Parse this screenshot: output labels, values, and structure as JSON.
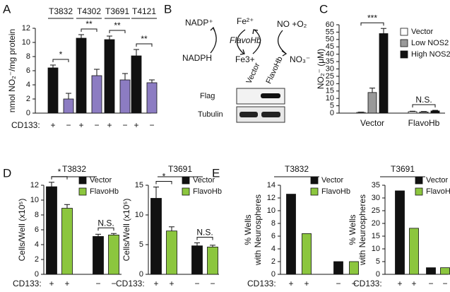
{
  "panel_labels": [
    "A",
    "B",
    "C",
    "D",
    "E"
  ],
  "diagram": {
    "nadp": "NADP⁺",
    "fe2": "Fe²⁺",
    "no_o2": "NO +O₂",
    "enzyme": "FlavoHb",
    "nadph": "NADPH",
    "fe3": "Fe3+",
    "no3": "NO₃⁻"
  },
  "blot": {
    "columns": [
      "Vector",
      "FlavoHb"
    ],
    "rows": [
      "Flag",
      "Tubulin"
    ]
  },
  "chart_data": [
    {
      "type": "bar",
      "y_label": [
        "nmol NO₂⁻/mg protein"
      ],
      "x_label": "CD133:",
      "categories": [
        "T3832",
        "T4302",
        "T3691",
        "T4121"
      ],
      "series": [
        {
          "name": "+",
          "color": "#111111",
          "values": [
            6.4,
            10.6,
            10.4,
            8.1
          ],
          "errors": [
            0.4,
            0.5,
            0.5,
            0.9
          ]
        },
        {
          "name": "−",
          "color": "#8c7cc2",
          "values": [
            2.0,
            5.3,
            4.7,
            4.3
          ],
          "errors": [
            0.8,
            0.9,
            0.9,
            0.4
          ]
        }
      ],
      "annotations": [
        "*",
        "**",
        "**",
        "**"
      ],
      "ylim": [
        0,
        12
      ],
      "yticks": [
        0,
        2,
        4,
        6,
        8,
        10,
        12
      ]
    },
    {
      "type": "bar",
      "y_label": [
        "NO₂⁻ (μM)"
      ],
      "categories": [
        "Vector",
        "FlavoHb"
      ],
      "series": [
        {
          "name": "Vector",
          "color": "#ffffff",
          "values": [
            0.5,
            1.0
          ],
          "errors": [
            0.2,
            0.3
          ]
        },
        {
          "name": "Low NOS2",
          "color": "#999999",
          "values": [
            14,
            0.8
          ],
          "errors": [
            3,
            0.3
          ]
        },
        {
          "name": "High NOS2",
          "color": "#111111",
          "values": [
            54,
            1.5
          ],
          "errors": [
            3.5,
            0.4
          ]
        }
      ],
      "annotations": [
        "***",
        "N.S."
      ],
      "ylim": [
        0,
        60
      ],
      "yticks": [
        0,
        5,
        10,
        15,
        20,
        25,
        30,
        35,
        40,
        45,
        50,
        55,
        60
      ]
    },
    {
      "type": "bar",
      "title": "T3832",
      "y_label": [
        "Cells/Well (x10⁵)"
      ],
      "x_label": "CD133:",
      "categories": [
        "+",
        "−"
      ],
      "series": [
        {
          "name": "Vector",
          "color": "#111111",
          "values": [
            11.8,
            5.1
          ],
          "errors": [
            0.6,
            0.3
          ]
        },
        {
          "name": "FlavoHb",
          "color": "#8cc63e",
          "values": [
            8.9,
            5.3
          ],
          "errors": [
            0.5,
            0.2
          ]
        }
      ],
      "annotations": [
        "*",
        "N.S."
      ],
      "ylim": [
        0,
        12
      ],
      "yticks": [
        0,
        2,
        4,
        6,
        8,
        10,
        12
      ]
    },
    {
      "type": "bar",
      "title": "T3691",
      "y_label": [
        "Cells/Well (x10⁵)"
      ],
      "x_label": "CD133:",
      "categories": [
        "+",
        "−"
      ],
      "series": [
        {
          "name": "Vector",
          "color": "#111111",
          "values": [
            12.8,
            4.8
          ],
          "errors": [
            1.9,
            0.5
          ]
        },
        {
          "name": "FlavoHb",
          "color": "#8cc63e",
          "values": [
            7.3,
            4.6
          ],
          "errors": [
            0.7,
            0.3
          ]
        }
      ],
      "annotations": [
        "*",
        "N.S."
      ],
      "ylim": [
        0,
        15
      ],
      "yticks": [
        0,
        5,
        10,
        15
      ]
    },
    {
      "type": "bar",
      "title": "T3832",
      "y_label": [
        "% Wells",
        "with Neurospheres"
      ],
      "x_label": "CD133:",
      "categories": [
        "+",
        "−"
      ],
      "series": [
        {
          "name": "Vector",
          "color": "#111111",
          "values": [
            12.6,
            2.0
          ]
        },
        {
          "name": "FlavoHb",
          "color": "#8cc63e",
          "values": [
            6.4,
            2.0
          ]
        }
      ],
      "ylim": [
        0,
        14
      ],
      "yticks": [
        0,
        2,
        4,
        6,
        8,
        10,
        12,
        14
      ]
    },
    {
      "type": "bar",
      "title": "T3691",
      "y_label": [
        "% Wells",
        "with Neurospheres"
      ],
      "x_label": "CD133:",
      "categories": [
        "+",
        "−"
      ],
      "series": [
        {
          "name": "Vector",
          "color": "#111111",
          "values": [
            32.8,
            2.6
          ]
        },
        {
          "name": "FlavoHb",
          "color": "#8cc63e",
          "values": [
            18.1,
            2.6
          ]
        }
      ],
      "ylim": [
        0,
        35
      ],
      "yticks": [
        0,
        5,
        10,
        15,
        20,
        25,
        30,
        35
      ]
    }
  ]
}
